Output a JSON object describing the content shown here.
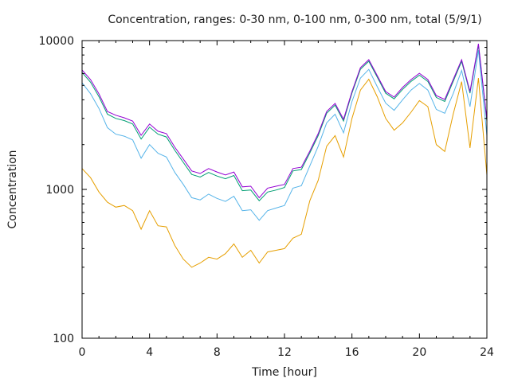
{
  "chart_data": {
    "type": "line",
    "title": "Concentration, ranges: 0-30 nm, 0-100 nm, 0-300 nm, total (5/9/1)",
    "xlabel": "Time [hour]",
    "ylabel": "Concentration",
    "xlim": [
      0,
      24
    ],
    "ylim": [
      100,
      10000
    ],
    "yscale": "log",
    "grid": false,
    "legend": "none",
    "xticks": [
      "0",
      "4",
      "8",
      "12",
      "16",
      "20",
      "24"
    ],
    "yticks": [
      "100",
      "1000",
      "10000"
    ],
    "x": [
      0,
      0.5,
      1,
      1.5,
      2,
      2.5,
      3,
      3.5,
      4,
      4.5,
      5,
      5.5,
      6,
      6.5,
      7,
      7.5,
      8,
      8.5,
      9,
      9.5,
      10,
      10.5,
      11,
      11.5,
      12,
      12.5,
      13,
      13.5,
      14,
      14.5,
      15,
      15.5,
      16,
      16.5,
      17,
      17.5,
      18,
      18.5,
      19,
      19.5,
      20,
      20.5,
      21,
      21.5,
      22,
      22.5,
      23,
      23.5,
      24
    ],
    "series": [
      {
        "name": "total",
        "color": "#9400d3",
        "values": [
          6340,
          5470,
          4380,
          3340,
          3150,
          3030,
          2880,
          2310,
          2750,
          2460,
          2370,
          1920,
          1600,
          1330,
          1280,
          1380,
          1310,
          1250,
          1310,
          1040,
          1050,
          880,
          1020,
          1050,
          1080,
          1380,
          1410,
          1810,
          2370,
          3340,
          3780,
          2960,
          4550,
          6580,
          7440,
          5820,
          4550,
          4170,
          4840,
          5470,
          6030,
          5470,
          4270,
          4020,
          5470,
          7440,
          4550,
          9520,
          2960
        ]
      },
      {
        "name": "0-300 nm",
        "color": "#009e73",
        "values": [
          6100,
          5250,
          4200,
          3200,
          3000,
          2900,
          2750,
          2180,
          2620,
          2350,
          2250,
          1830,
          1520,
          1260,
          1210,
          1300,
          1230,
          1180,
          1240,
          980,
          990,
          840,
          960,
          990,
          1030,
          1330,
          1360,
          1760,
          2300,
          3250,
          3680,
          2880,
          4450,
          6420,
          7260,
          5680,
          4430,
          4060,
          4700,
          5320,
          5850,
          5320,
          4150,
          3900,
          5320,
          7260,
          4430,
          9300,
          2880
        ]
      },
      {
        "name": "0-100 nm",
        "color": "#56b4e9",
        "values": [
          5200,
          4400,
          3500,
          2600,
          2350,
          2280,
          2150,
          1620,
          2000,
          1750,
          1650,
          1300,
          1080,
          880,
          850,
          930,
          870,
          830,
          900,
          720,
          730,
          620,
          720,
          750,
          780,
          1020,
          1060,
          1440,
          1950,
          2800,
          3200,
          2400,
          3900,
          5600,
          6400,
          4900,
          3800,
          3400,
          4000,
          4650,
          5150,
          4650,
          3450,
          3250,
          4400,
          6300,
          3600,
          8600,
          2300
        ]
      },
      {
        "name": "0-30 nm",
        "color": "#e69f00",
        "values": [
          1380,
          1200,
          960,
          820,
          760,
          780,
          720,
          540,
          720,
          570,
          560,
          420,
          340,
          300,
          320,
          350,
          340,
          370,
          430,
          350,
          390,
          320,
          380,
          390,
          400,
          470,
          500,
          840,
          1150,
          1950,
          2300,
          1650,
          3000,
          4650,
          5500,
          4200,
          3000,
          2500,
          2800,
          3300,
          3950,
          3600,
          2000,
          1800,
          3200,
          5300,
          1900,
          5600,
          1250
        ]
      }
    ]
  }
}
